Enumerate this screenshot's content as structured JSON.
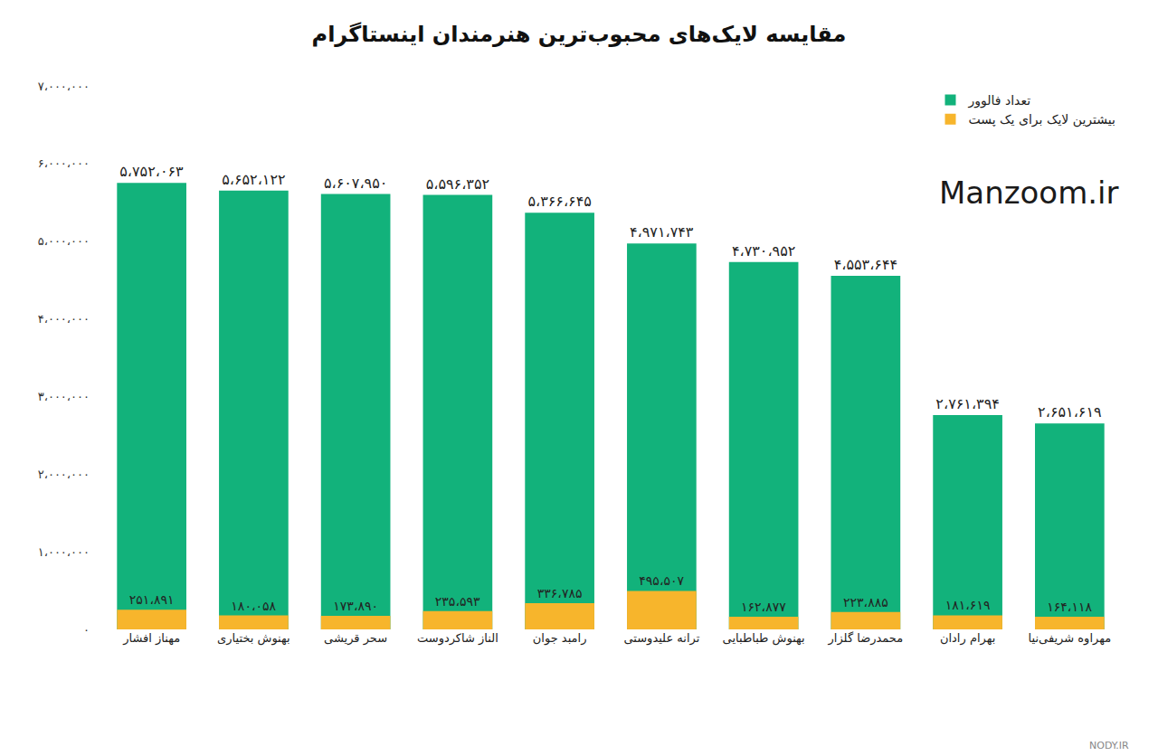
{
  "chart_data": {
    "type": "bar",
    "title": "مقایسه لایک‌های محبوب‌ترین هنرمندان اینستاگرام",
    "categories": [
      "مهناز افشار",
      "بهنوش بختیاری",
      "سحر قریشی",
      "الناز شاکردوست",
      "رامبد جوان",
      "ترانه علیدوستی",
      "بهنوش طباطبایی",
      "محمدرضا گلزار",
      "بهرام رادان",
      "مهراوه شریفی‌نیا"
    ],
    "series": [
      {
        "name": "تعداد فالوور",
        "color": "#12b27b",
        "values": [
          5752063,
          5652122,
          5607950,
          5596352,
          5366645,
          4971743,
          4730952,
          4553644,
          2761394,
          2651619
        ],
        "value_labels": [
          "۵،۷۵۲،۰۶۳",
          "۵،۶۵۲،۱۲۲",
          "۵،۶۰۷،۹۵۰",
          "۵،۵۹۶،۳۵۲",
          "۵،۳۶۶،۶۴۵",
          "۴،۹۷۱،۷۴۳",
          "۴،۷۳۰،۹۵۲",
          "۴،۵۵۳،۶۴۴",
          "۲،۷۶۱،۳۹۴",
          "۲،۶۵۱،۶۱۹"
        ]
      },
      {
        "name": "بیشترین لایک برای یک پست",
        "color": "#f7b52c",
        "values": [
          251891,
          180058,
          173890,
          235593,
          336785,
          495507,
          162877,
          223885,
          181619,
          164118
        ],
        "value_labels": [
          "۲۵۱،۸۹۱",
          "۱۸۰،۰۵۸",
          "۱۷۳،۸۹۰",
          "۲۳۵،۵۹۳",
          "۳۳۶،۷۸۵",
          "۴۹۵،۵۰۷",
          "۱۶۲،۸۷۷",
          "۲۲۳،۸۸۵",
          "۱۸۱،۶۱۹",
          "۱۶۴،۱۱۸"
        ]
      }
    ],
    "ylim": [
      0,
      7000000
    ],
    "yticks": [
      {
        "value": 0,
        "label": "۰"
      },
      {
        "value": 1000000,
        "label": "۱،۰۰۰،۰۰۰"
      },
      {
        "value": 2000000,
        "label": "۲،۰۰۰،۰۰۰"
      },
      {
        "value": 3000000,
        "label": "۳،۰۰۰،۰۰۰"
      },
      {
        "value": 4000000,
        "label": "۴،۰۰۰،۰۰۰"
      },
      {
        "value": 5000000,
        "label": "۵،۰۰۰،۰۰۰"
      },
      {
        "value": 6000000,
        "label": "۶،۰۰۰،۰۰۰"
      },
      {
        "value": 7000000,
        "label": "۷،۰۰۰،۰۰۰"
      }
    ],
    "grid": false,
    "stacked": false,
    "data_labels": true,
    "legend": "top right",
    "annotations": [
      "Manzoom.ir",
      "NODY.IR"
    ]
  }
}
